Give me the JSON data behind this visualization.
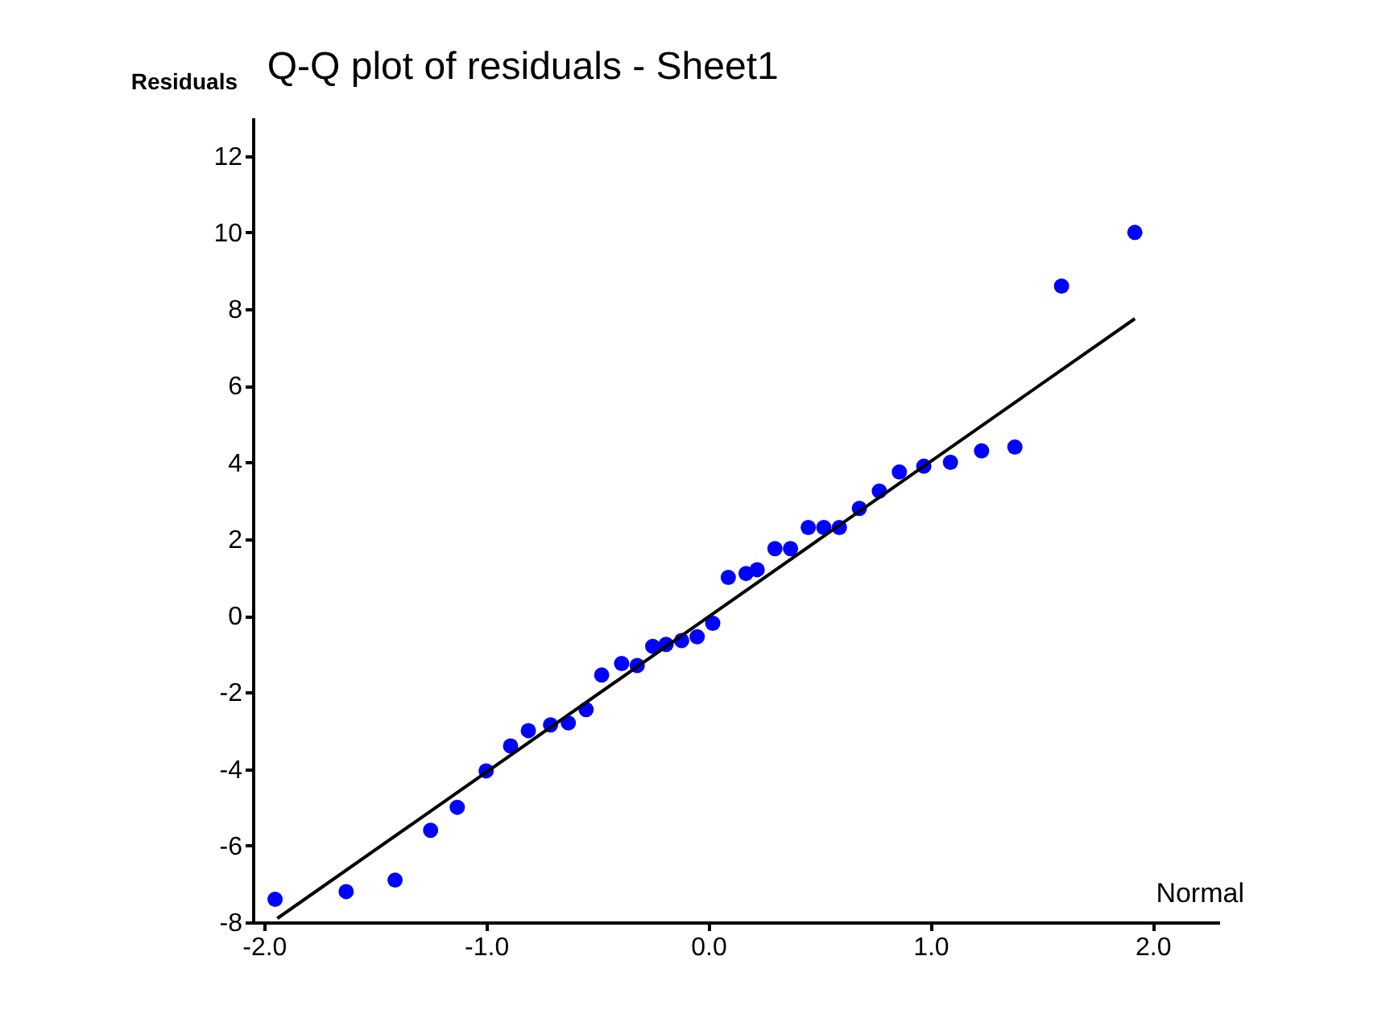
{
  "chart_data": {
    "type": "scatter",
    "title": "Q-Q plot of residuals - Sheet1",
    "xlabel": "Normal",
    "ylabel": "Residuals",
    "xlim": [
      -2.05,
      2.3
    ],
    "ylim": [
      -8,
      13
    ],
    "xticks": [
      {
        "value": -2,
        "label": "-2.0"
      },
      {
        "value": -1,
        "label": "-1.0"
      },
      {
        "value": 0,
        "label": "0.0"
      },
      {
        "value": 1,
        "label": "1.0"
      },
      {
        "value": 2,
        "label": "2.0"
      }
    ],
    "yticks": [
      -8,
      -6,
      -4,
      -2,
      0,
      2,
      4,
      6,
      8,
      10,
      12
    ],
    "grid": false,
    "series": [
      {
        "marker": "circle",
        "color": "#0000ff",
        "x": [
          -1.95,
          -1.63,
          -1.41,
          -1.25,
          -1.13,
          -1.0,
          -0.89,
          -0.81,
          -0.71,
          -0.63,
          -0.55,
          -0.48,
          -0.39,
          -0.32,
          -0.25,
          -0.19,
          -0.12,
          -0.05,
          0.02,
          0.09,
          0.17,
          0.22,
          0.3,
          0.37,
          0.45,
          0.52,
          0.59,
          0.68,
          0.77,
          0.86,
          0.97,
          1.09,
          1.23,
          1.38,
          1.59,
          1.92
        ],
        "values": [
          -7.4,
          -7.2,
          -6.9,
          -5.6,
          -5.0,
          -4.05,
          -3.4,
          -3.0,
          -2.85,
          -2.8,
          -2.45,
          -1.55,
          -1.25,
          -1.3,
          -0.8,
          -0.75,
          -0.65,
          -0.55,
          -0.2,
          1.0,
          1.1,
          1.2,
          1.75,
          1.75,
          2.3,
          2.3,
          2.3,
          2.8,
          3.25,
          3.75,
          3.9,
          4.0,
          4.3,
          4.4,
          8.6,
          10.0
        ]
      },
      {
        "type": "line",
        "color": "#000000",
        "x": [
          -1.94,
          1.92
        ],
        "values": [
          -7.9,
          7.75
        ]
      }
    ]
  }
}
